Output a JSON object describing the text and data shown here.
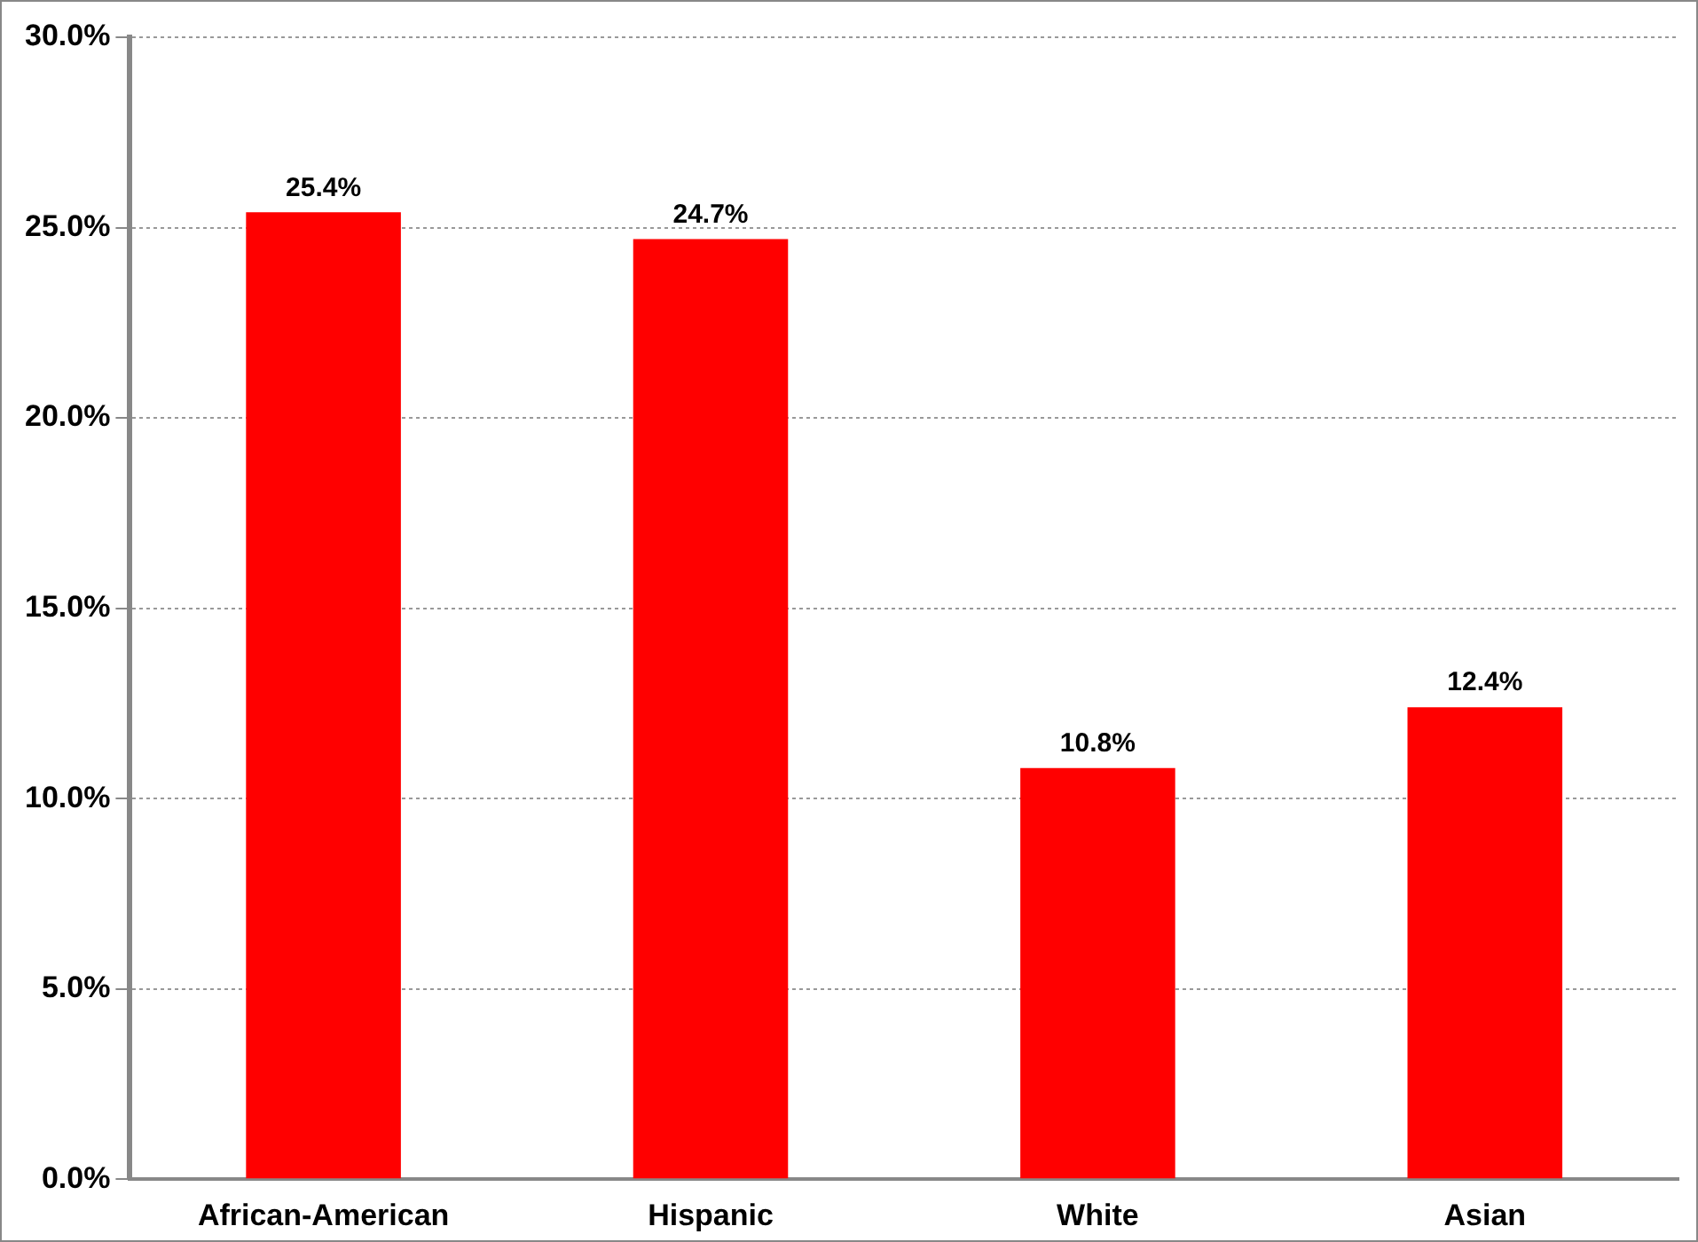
{
  "chart_data": {
    "type": "bar",
    "categories": [
      "African-American",
      "Hispanic",
      "White",
      "Asian"
    ],
    "values": [
      25.4,
      24.7,
      10.8,
      12.4
    ],
    "color": "#ff0000",
    "value_labels": [
      "25.4%",
      "24.7%",
      "10.8%",
      "12.4%"
    ],
    "ylim": [
      0,
      30
    ],
    "yticks": [
      {
        "value": 0,
        "label": "0.0%"
      },
      {
        "value": 5,
        "label": "5.0%"
      },
      {
        "value": 10,
        "label": "10.0%"
      },
      {
        "value": 15,
        "label": "15.0%"
      },
      {
        "value": 20,
        "label": "20.0%"
      },
      {
        "value": 25,
        "label": "25.0%"
      },
      {
        "value": 30,
        "label": "30.0%"
      }
    ],
    "grid": "y",
    "legend": false
  }
}
